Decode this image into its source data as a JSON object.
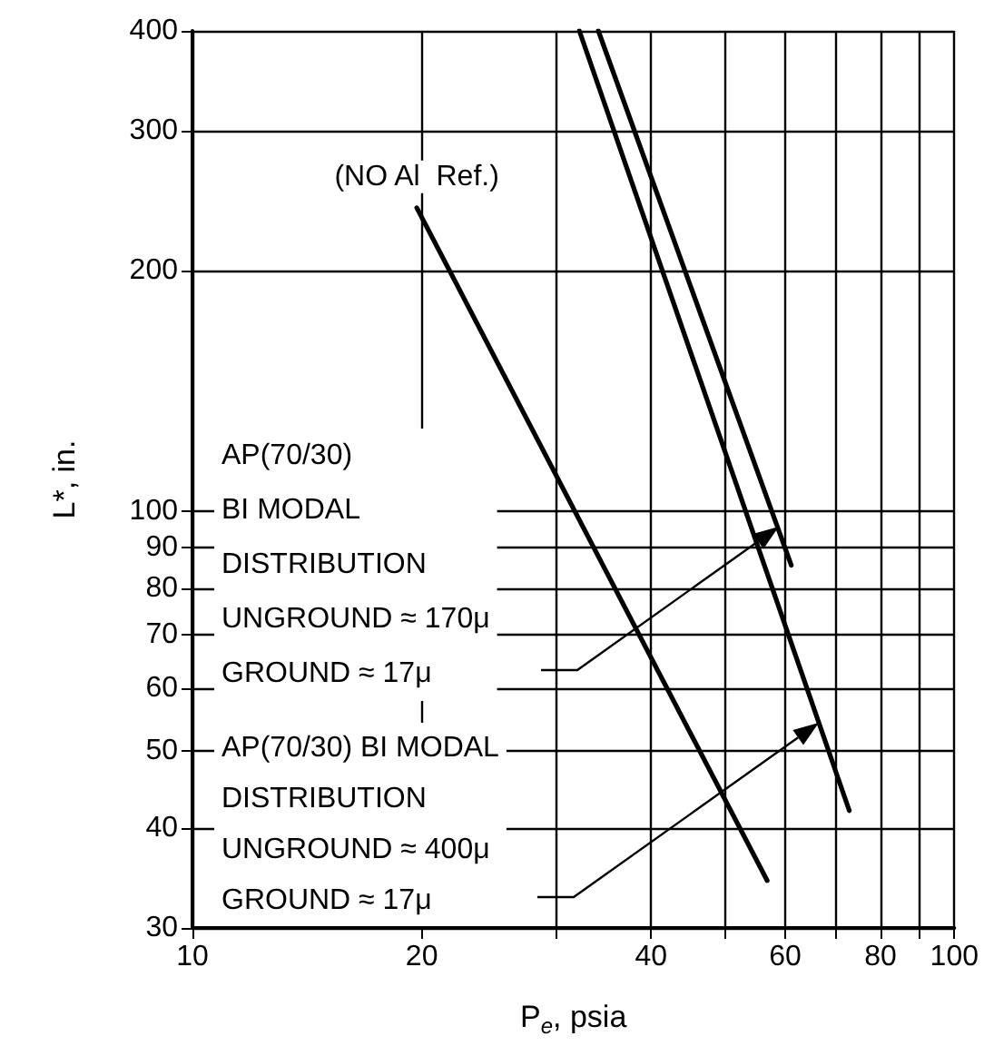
{
  "chart_data": {
    "type": "line",
    "xlabel": "P$_{e}$, psia",
    "ylabel": "L*, in.",
    "log": "xy",
    "xlim": [
      10,
      100
    ],
    "ylim": [
      30,
      400
    ],
    "xticks": [
      10,
      20,
      {
        "value": 30,
        "label": null
      },
      40,
      {
        "value": 50,
        "label": null
      },
      60,
      {
        "value": 70,
        "label": null
      },
      80,
      {
        "value": 90,
        "label": null
      },
      100
    ],
    "yticks": [
      30,
      40,
      50,
      60,
      70,
      80,
      90,
      100,
      200,
      300,
      400
    ],
    "grid": true,
    "marker": "none",
    "line_style": "solid",
    "series": [
      {
        "color": "#000000",
        "x": [
          19.7,
          56.8
        ],
        "values": [
          240,
          34.4
        ]
      },
      {
        "color": "#000000",
        "x": [
          32.2,
          72.8
        ],
        "values": [
          400,
          42.1
        ]
      },
      {
        "color": "#000000",
        "x": [
          34.1,
          61.1
        ],
        "values": [
          400,
          85.5
        ]
      }
    ],
    "annotations": [
      {
        "text": "(NO Al  Ref.)",
        "x": 19.7,
        "y": 240
      },
      "AP(70/30)\nBI MODAL\nDISTRIBUTION\nUNGROUND ≈ 170μ\nGROUND ≈ 17μ",
      "AP(70/30) BI MODAL\nDISTRIBUTION\nUNGROUND ≈ 400μ\nGROUND ≈ 17μ"
    ]
  }
}
